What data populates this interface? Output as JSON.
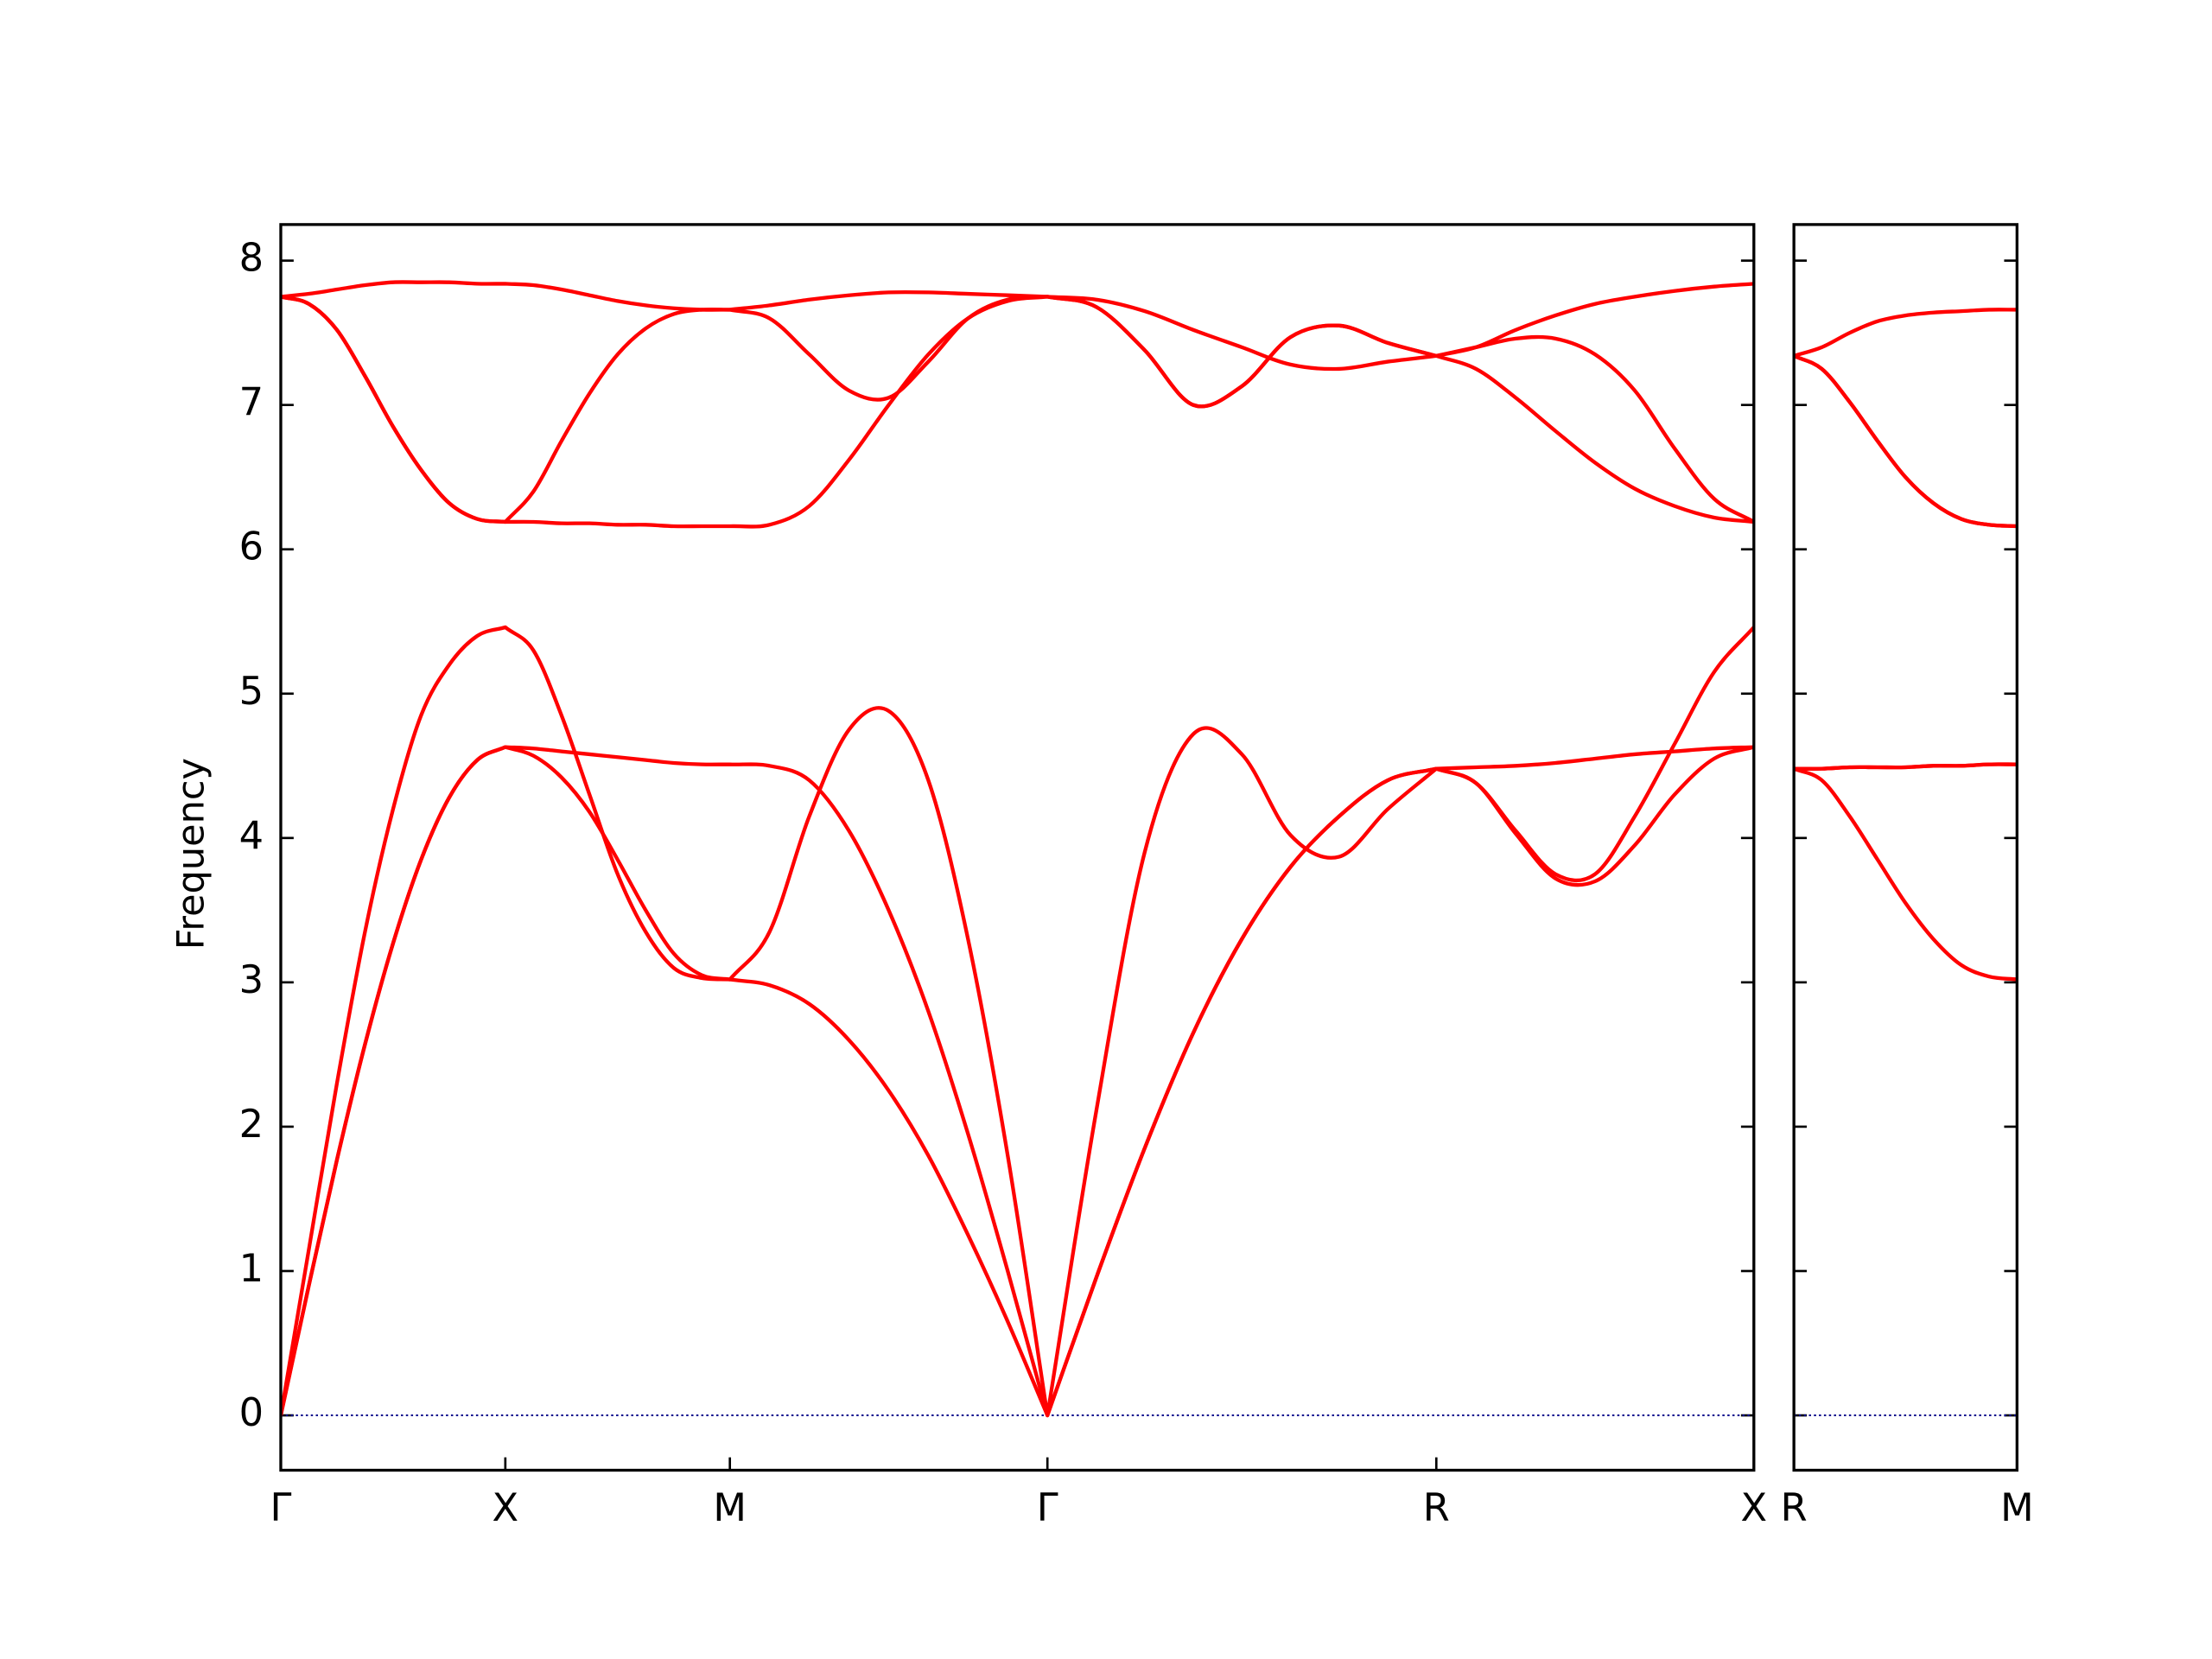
{
  "chart_data": [
    {
      "type": "line",
      "ylabel": "Frequency",
      "x": [
        0,
        0.0625,
        0.125,
        0.1875,
        0.25,
        0.3125,
        0.375,
        0.4375,
        0.5,
        0.5625,
        0.625,
        0.6875,
        0.75,
        0.8125,
        0.875,
        0.9375,
        1.0,
        1.0884,
        1.1768,
        1.2652,
        1.3536,
        1.4419,
        1.5303,
        1.6187,
        1.7071,
        1.8154,
        1.9236,
        2.0319,
        2.1401,
        2.2484,
        2.3566,
        2.4649,
        2.5731,
        2.6615,
        2.7499,
        2.8383,
        2.9267,
        3.015,
        3.1034,
        3.1918,
        3.2802
      ],
      "xlim": [
        0,
        3.2802
      ],
      "xticks": [
        {
          "value": 0,
          "label": "Γ"
        },
        {
          "value": 0.5,
          "label": "X"
        },
        {
          "value": 1.0,
          "label": "M"
        },
        {
          "value": 1.7071,
          "label": "Γ"
        },
        {
          "value": 2.5731,
          "label": "R"
        },
        {
          "value": 3.2802,
          "label": "X"
        }
      ],
      "ylim": [
        -0.38,
        8.25
      ],
      "yticks": [
        0,
        1,
        2,
        3,
        4,
        5,
        6,
        7,
        8
      ],
      "ytick_labels": true,
      "hline": 0,
      "hline_color": "#00008b",
      "series": [
        {
          "color": "#ff0000",
          "values": [
            0,
            0.9,
            1.77,
            2.57,
            3.27,
            3.85,
            4.28,
            4.54,
            4.63,
            4.57,
            4.42,
            4.18,
            3.85,
            3.5,
            3.2,
            3.05,
            3.02,
            2.98,
            2.85,
            2.6,
            2.25,
            1.8,
            1.25,
            0.65,
            0,
            0.95,
            1.85,
            2.65,
            3.3,
            3.8,
            4.15,
            4.4,
            4.48,
            4.38,
            4.03,
            3.72,
            3.7,
            3.95,
            4.3,
            4.55,
            4.63
          ]
        },
        {
          "color": "#ff0000",
          "values": [
            0,
            0.9,
            1.77,
            2.57,
            3.27,
            3.85,
            4.28,
            4.54,
            4.63,
            4.62,
            4.6,
            4.58,
            4.56,
            4.54,
            4.52,
            4.51,
            4.51,
            4.5,
            4.4,
            4.05,
            3.5,
            2.8,
            1.95,
            1.0,
            0,
            0.95,
            1.85,
            2.65,
            3.3,
            3.8,
            4.15,
            4.4,
            4.48,
            4.49,
            4.5,
            4.52,
            4.55,
            4.58,
            4.6,
            4.62,
            4.63
          ]
        },
        {
          "color": "#ff0000",
          "values": [
            0,
            1.15,
            2.3,
            3.35,
            4.2,
            4.85,
            5.2,
            5.4,
            5.46,
            5.3,
            4.85,
            4.3,
            3.75,
            3.35,
            3.1,
            3.03,
            3.02,
            3.35,
            4.15,
            4.75,
            4.88,
            4.4,
            3.3,
            1.8,
            0,
            2.1,
            3.9,
            4.72,
            4.58,
            4.02,
            3.87,
            4.2,
            4.48,
            4.38,
            4.05,
            3.75,
            3.75,
            4.15,
            4.65,
            5.15,
            5.46
          ]
        },
        {
          "color": "#ff0000",
          "values": [
            7.75,
            7.7,
            7.52,
            7.2,
            6.85,
            6.55,
            6.32,
            6.21,
            6.19,
            6.4,
            6.75,
            7.08,
            7.35,
            7.53,
            7.63,
            7.66,
            7.66,
            7.6,
            7.35,
            7.1,
            7.05,
            7.3,
            7.6,
            7.73,
            7.75,
            7.68,
            7.38,
            7.0,
            7.13,
            7.47,
            7.55,
            7.43,
            7.34,
            7.4,
            7.46,
            7.46,
            7.35,
            7.1,
            6.7,
            6.35,
            6.19
          ]
        },
        {
          "color": "#ff0000",
          "values": [
            7.75,
            7.7,
            7.52,
            7.2,
            6.85,
            6.55,
            6.32,
            6.21,
            6.19,
            6.19,
            6.18,
            6.18,
            6.17,
            6.17,
            6.16,
            6.16,
            6.16,
            6.17,
            6.3,
            6.62,
            7.0,
            7.35,
            7.6,
            7.72,
            7.75,
            7.68,
            7.38,
            7.0,
            7.13,
            7.47,
            7.55,
            7.43,
            7.34,
            7.25,
            7.05,
            6.82,
            6.6,
            6.42,
            6.3,
            6.22,
            6.19
          ]
        },
        {
          "color": "#ff0000",
          "values": [
            7.75,
            7.77,
            7.8,
            7.83,
            7.85,
            7.85,
            7.85,
            7.84,
            7.84,
            7.83,
            7.8,
            7.76,
            7.72,
            7.69,
            7.67,
            7.66,
            7.66,
            7.69,
            7.73,
            7.76,
            7.78,
            7.78,
            7.77,
            7.76,
            7.75,
            7.73,
            7.65,
            7.52,
            7.4,
            7.28,
            7.25,
            7.3,
            7.34,
            7.4,
            7.52,
            7.62,
            7.7,
            7.75,
            7.79,
            7.82,
            7.84
          ]
        }
      ]
    },
    {
      "type": "line",
      "x": [
        0,
        0.0625,
        0.125,
        0.1875,
        0.25,
        0.3125,
        0.375,
        0.4375,
        0.5
      ],
      "xlim": [
        0,
        0.5
      ],
      "xticks": [
        {
          "value": 0,
          "label": "R"
        },
        {
          "value": 0.5,
          "label": "M"
        }
      ],
      "ylim": [
        -0.38,
        8.25
      ],
      "yticks": [
        0,
        1,
        2,
        3,
        4,
        5,
        6,
        7,
        8
      ],
      "ytick_labels": false,
      "hline": 0,
      "hline_color": "#00008b",
      "series": [
        {
          "color": "#ff0000",
          "values": [
            4.48,
            4.4,
            4.15,
            3.85,
            3.55,
            3.3,
            3.12,
            3.04,
            3.02
          ]
        },
        {
          "color": "#ff0000",
          "values": [
            4.48,
            4.48,
            4.49,
            4.49,
            4.49,
            4.5,
            4.5,
            4.51,
            4.51
          ]
        },
        {
          "color": "#ff0000",
          "values": [
            4.48,
            4.48,
            4.49,
            4.49,
            4.49,
            4.5,
            4.5,
            4.51,
            4.51
          ]
        },
        {
          "color": "#ff0000",
          "values": [
            7.34,
            7.25,
            7.02,
            6.75,
            6.5,
            6.32,
            6.21,
            6.17,
            6.16
          ]
        },
        {
          "color": "#ff0000",
          "values": [
            7.34,
            7.25,
            7.02,
            6.75,
            6.5,
            6.32,
            6.21,
            6.17,
            6.16
          ]
        },
        {
          "color": "#ff0000",
          "values": [
            7.34,
            7.4,
            7.5,
            7.58,
            7.62,
            7.64,
            7.65,
            7.66,
            7.66
          ]
        }
      ]
    }
  ]
}
